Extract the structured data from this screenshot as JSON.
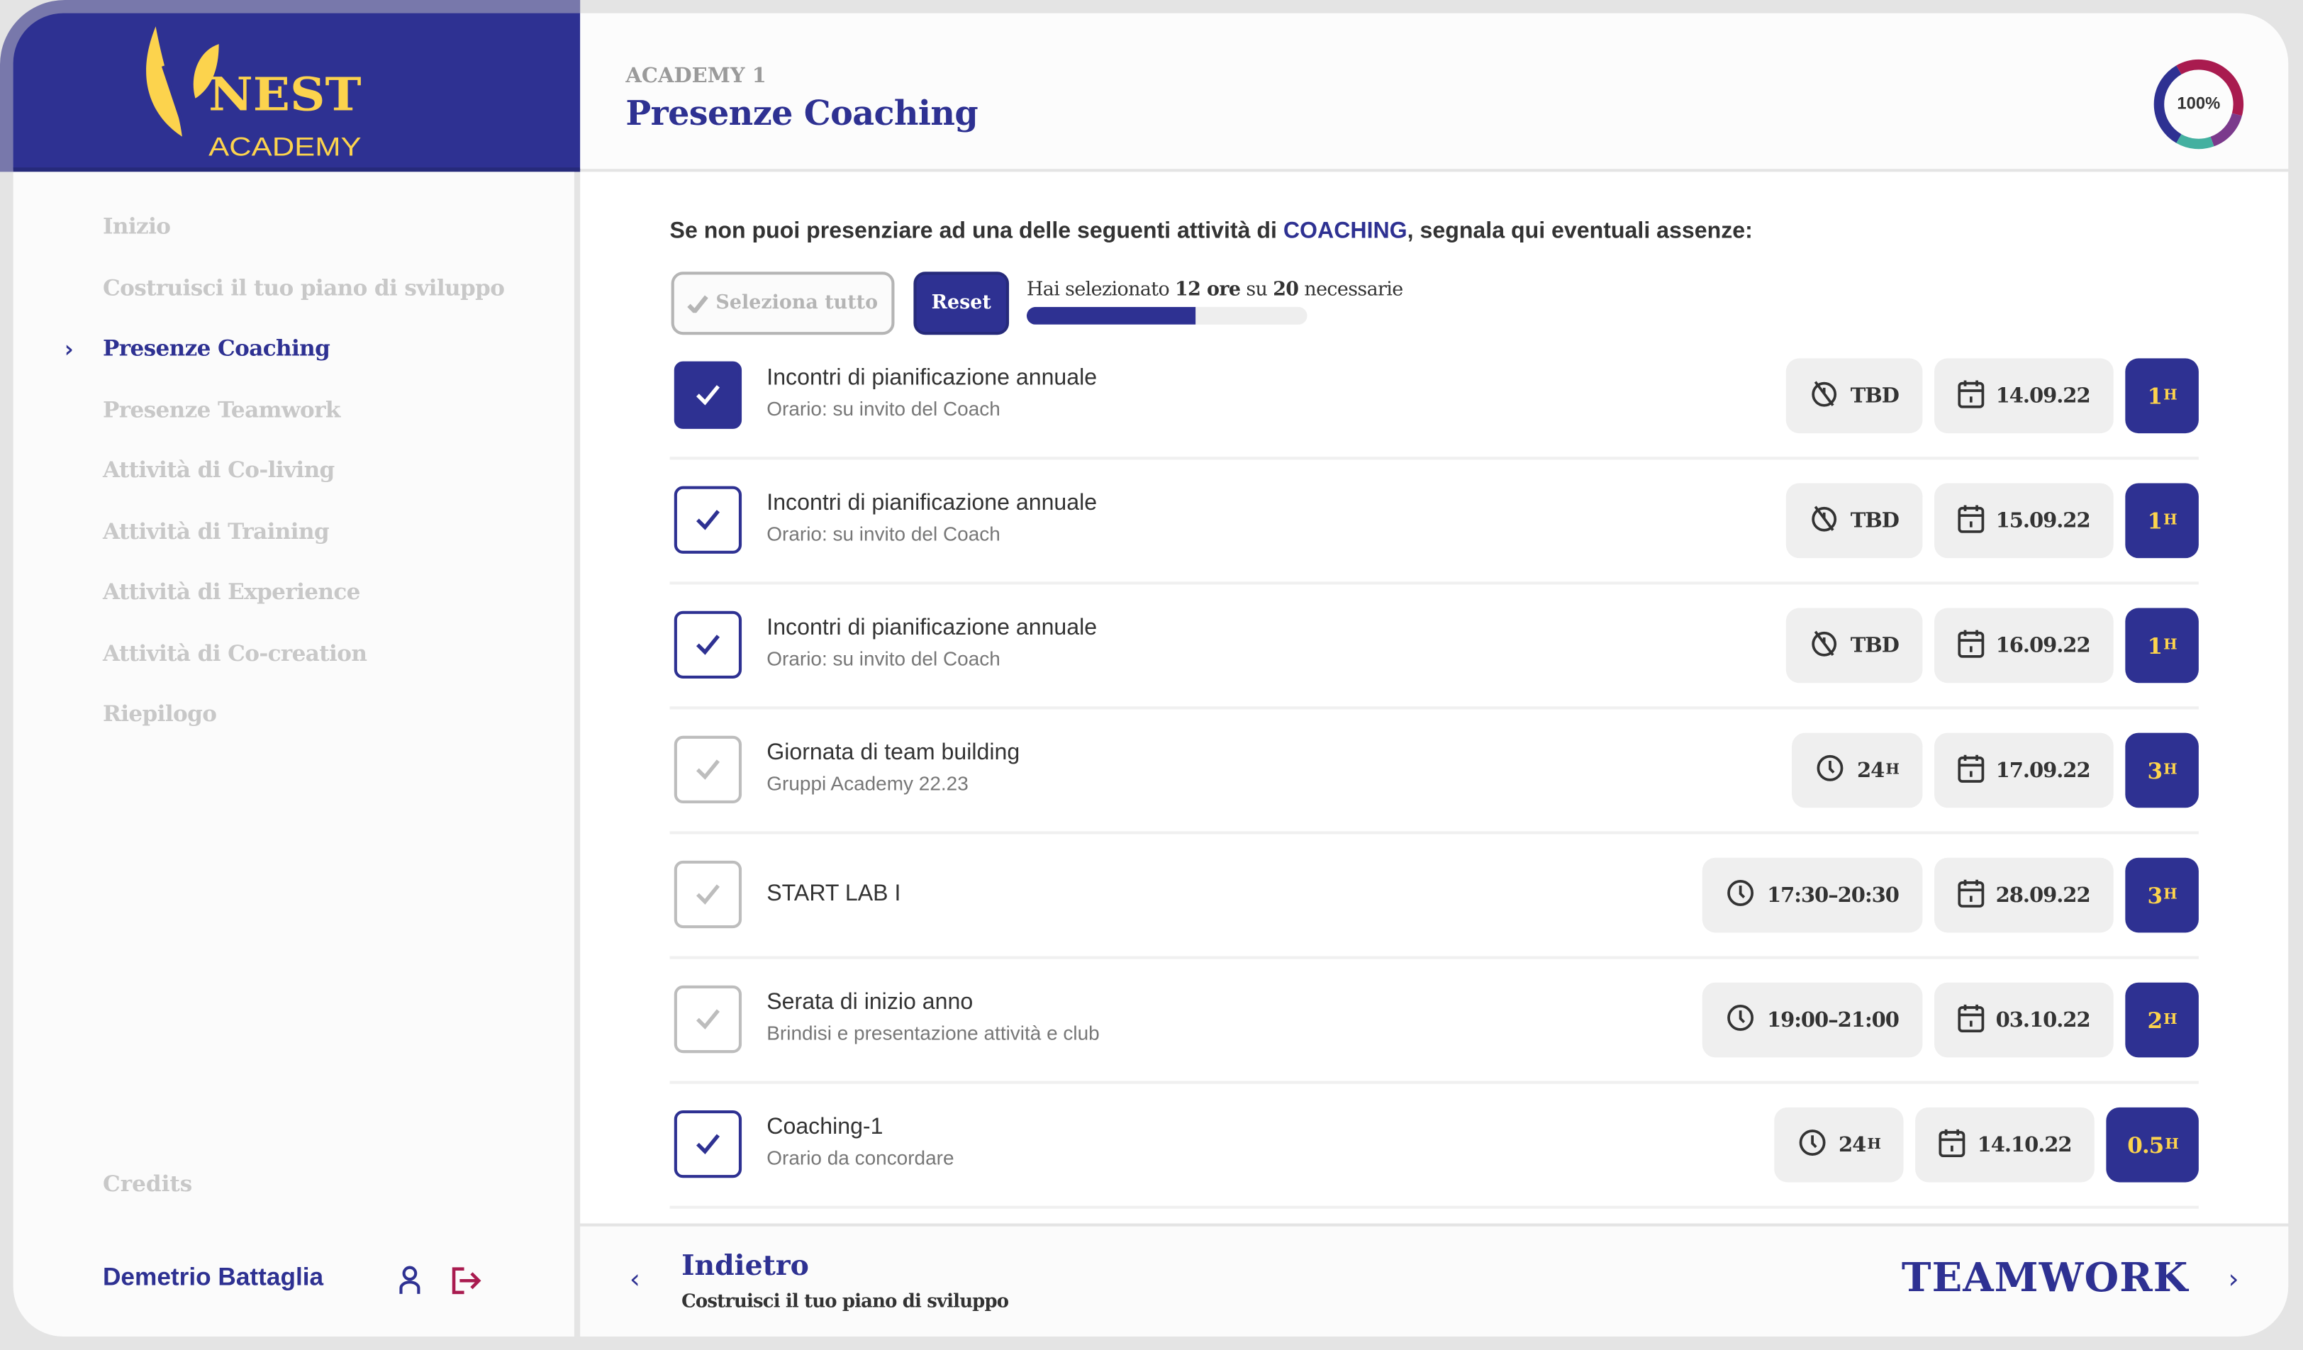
{
  "brand": {
    "logo_line1": "NEST",
    "logo_line2": "ACADEMY",
    "primary": "#2e3192",
    "accent": "#fcd34d"
  },
  "sidebar": {
    "items": [
      {
        "label": "Inizio",
        "active": false
      },
      {
        "label": "Costruisci il tuo piano di sviluppo",
        "active": false
      },
      {
        "label": "Presenze Coaching",
        "active": true
      },
      {
        "label": "Presenze Teamwork",
        "active": false
      },
      {
        "label": "Attività di Co-living",
        "active": false
      },
      {
        "label": "Attività di Training",
        "active": false
      },
      {
        "label": "Attività di Experience",
        "active": false
      },
      {
        "label": "Attività di Co-creation",
        "active": false
      },
      {
        "label": "Riepilogo",
        "active": false
      }
    ],
    "credits": "Credits",
    "user_name": "Demetrio Battaglia",
    "icons": {
      "profile": "user-icon",
      "logout": "logout-icon"
    }
  },
  "header": {
    "section": "ACADEMY 1",
    "title": "Presenze Coaching",
    "completion": "100%",
    "ring_colors": [
      "#2e3192",
      "#a91b4f",
      "#7b3a8c",
      "#43b0a0"
    ]
  },
  "main": {
    "intro_pre": "Se non puoi presenziare ad una delle seguenti attività di ",
    "intro_highlight": "COACHING",
    "intro_post": ", segnala qui eventuali assenze:",
    "select_all": "Seleziona tutto",
    "reset": "Reset",
    "progress": {
      "pre": "Hai selezionato ",
      "selected": "12 ore",
      "mid": " su ",
      "required": "20",
      "post": " necessarie",
      "percent": 60
    },
    "activities": [
      {
        "title": "Incontri di pianificazione annuale",
        "subtitle": "Orario: su invito del Coach",
        "state": "checked",
        "time_icon": "clock-off-icon",
        "time": "TBD",
        "date": "14.09.22",
        "hours": "1",
        "unit": "H"
      },
      {
        "title": "Incontri di pianificazione annuale",
        "subtitle": "Orario: su invito del Coach",
        "state": "outline",
        "time_icon": "clock-off-icon",
        "time": "TBD",
        "date": "15.09.22",
        "hours": "1",
        "unit": "H"
      },
      {
        "title": "Incontri di pianificazione annuale",
        "subtitle": "Orario: su invito del Coach",
        "state": "outline",
        "time_icon": "clock-off-icon",
        "time": "TBD",
        "date": "16.09.22",
        "hours": "1",
        "unit": "H"
      },
      {
        "title": "Giornata di team building",
        "subtitle": "Gruppi Academy 22.23",
        "state": "off",
        "time_icon": "clock-icon",
        "time": "24",
        "time_unit": "H",
        "date": "17.09.22",
        "hours": "3",
        "unit": "H"
      },
      {
        "title": "START LAB I",
        "subtitle": "",
        "state": "off",
        "time_icon": "clock-icon",
        "time": "17:30–20:30",
        "date": "28.09.22",
        "hours": "3",
        "unit": "H"
      },
      {
        "title": "Serata di inizio anno",
        "subtitle": "Brindisi e presentazione attività e club",
        "state": "off",
        "time_icon": "clock-icon",
        "time": "19:00–21:00",
        "date": "03.10.22",
        "hours": "2",
        "unit": "H"
      },
      {
        "title": "Coaching-1",
        "subtitle": "Orario da concordare",
        "state": "outline",
        "time_icon": "clock-icon",
        "time": "24",
        "time_unit": "H",
        "date": "14.10.22",
        "hours": "0.5",
        "unit": "H"
      }
    ]
  },
  "footer": {
    "back_label": "Indietro",
    "back_sub": "Costruisci il tuo piano di sviluppo",
    "next_label": "TEAMWORK"
  }
}
